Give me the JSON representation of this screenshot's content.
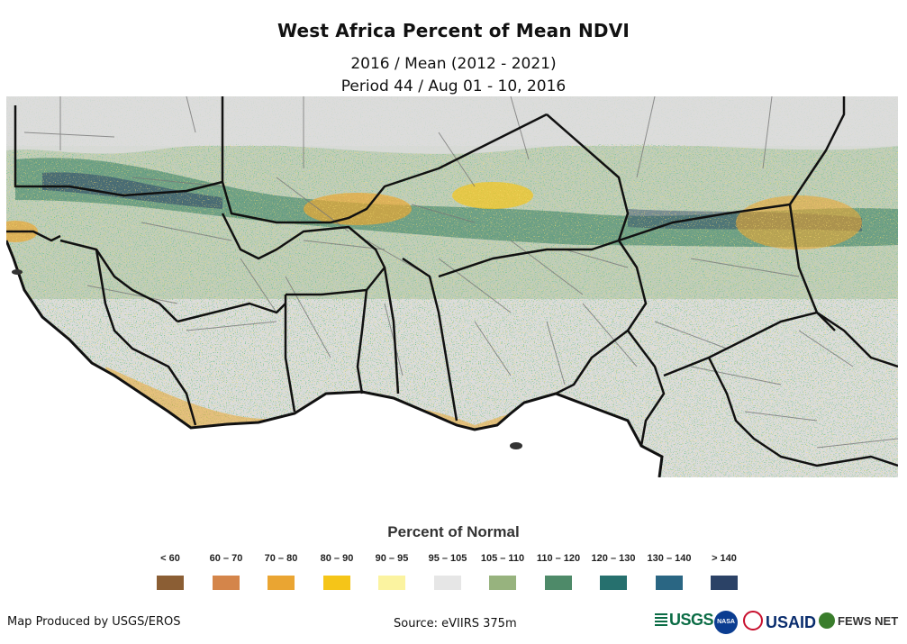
{
  "title": "West Africa Percent of Mean NDVI",
  "subtitle_line1": "2016 / Mean (2012 - 2021)",
  "subtitle_line2": "Period 44 / Aug 01 - 10, 2016",
  "legend": {
    "title": "Percent of Normal",
    "items": [
      {
        "label": "< 60",
        "color": "#8b5e34"
      },
      {
        "label": "60 – 70",
        "color": "#d4854a"
      },
      {
        "label": "70 – 80",
        "color": "#eaa532"
      },
      {
        "label": "80 – 90",
        "color": "#f5c518"
      },
      {
        "label": "90 – 95",
        "color": "#fbf3a0"
      },
      {
        "label": "95 – 105",
        "color": "#e6e6e6"
      },
      {
        "label": "105 – 110",
        "color": "#97b37e"
      },
      {
        "label": "110 – 120",
        "color": "#4e8a69"
      },
      {
        "label": "120 – 130",
        "color": "#26706e"
      },
      {
        "label": "130 – 140",
        "color": "#2a6683"
      },
      {
        "label": "> 140",
        "color": "#2b4266"
      }
    ]
  },
  "footer": {
    "producer": "Map Produced by USGS/EROS",
    "source": "Source: eVIIRS 375m"
  },
  "logos": {
    "usgs": "USGS",
    "nasa": "NASA",
    "usaid": "USAID",
    "fews": "FEWS NET"
  },
  "colors": {
    "ocean": "#ffffff",
    "land_normal": "#dcdcdc",
    "border_major": "#111111",
    "border_admin": "#777777"
  }
}
